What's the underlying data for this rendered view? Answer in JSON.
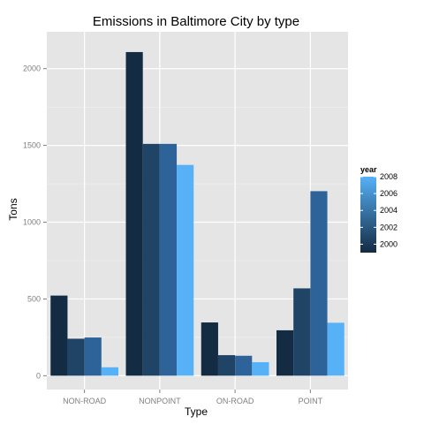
{
  "chart_data": {
    "type": "bar",
    "title": "Emissions in Baltimore City by type",
    "xlabel": "Type",
    "ylabel": "Tons",
    "categories": [
      "NON-ROAD",
      "NONPOINT",
      "ON-ROAD",
      "POINT"
    ],
    "series": [
      {
        "year": 1999,
        "color": "#132b43",
        "values": [
          522,
          2108,
          347,
          296
        ]
      },
      {
        "year": 2002,
        "color": "#1f4466",
        "values": [
          241,
          1510,
          134,
          569
        ]
      },
      {
        "year": 2005,
        "color": "#2d6399",
        "values": [
          249,
          1510,
          130,
          1202
        ]
      },
      {
        "year": 2008,
        "color": "#56b1f7",
        "values": [
          55,
          1373,
          88,
          345
        ]
      }
    ],
    "ylim": [
      -90,
      2240
    ],
    "yticks": [
      0,
      500,
      1000,
      1500,
      2000
    ],
    "grid": true,
    "legend": {
      "title": "year",
      "position": "right",
      "labels": [
        "2008",
        "2006",
        "2004",
        "2002",
        "2000"
      ],
      "label_values": [
        2008,
        2006,
        2004,
        2002,
        2000
      ],
      "range": [
        1999,
        2008
      ],
      "color_low": "#132b43",
      "color_high": "#56b1f7"
    }
  }
}
